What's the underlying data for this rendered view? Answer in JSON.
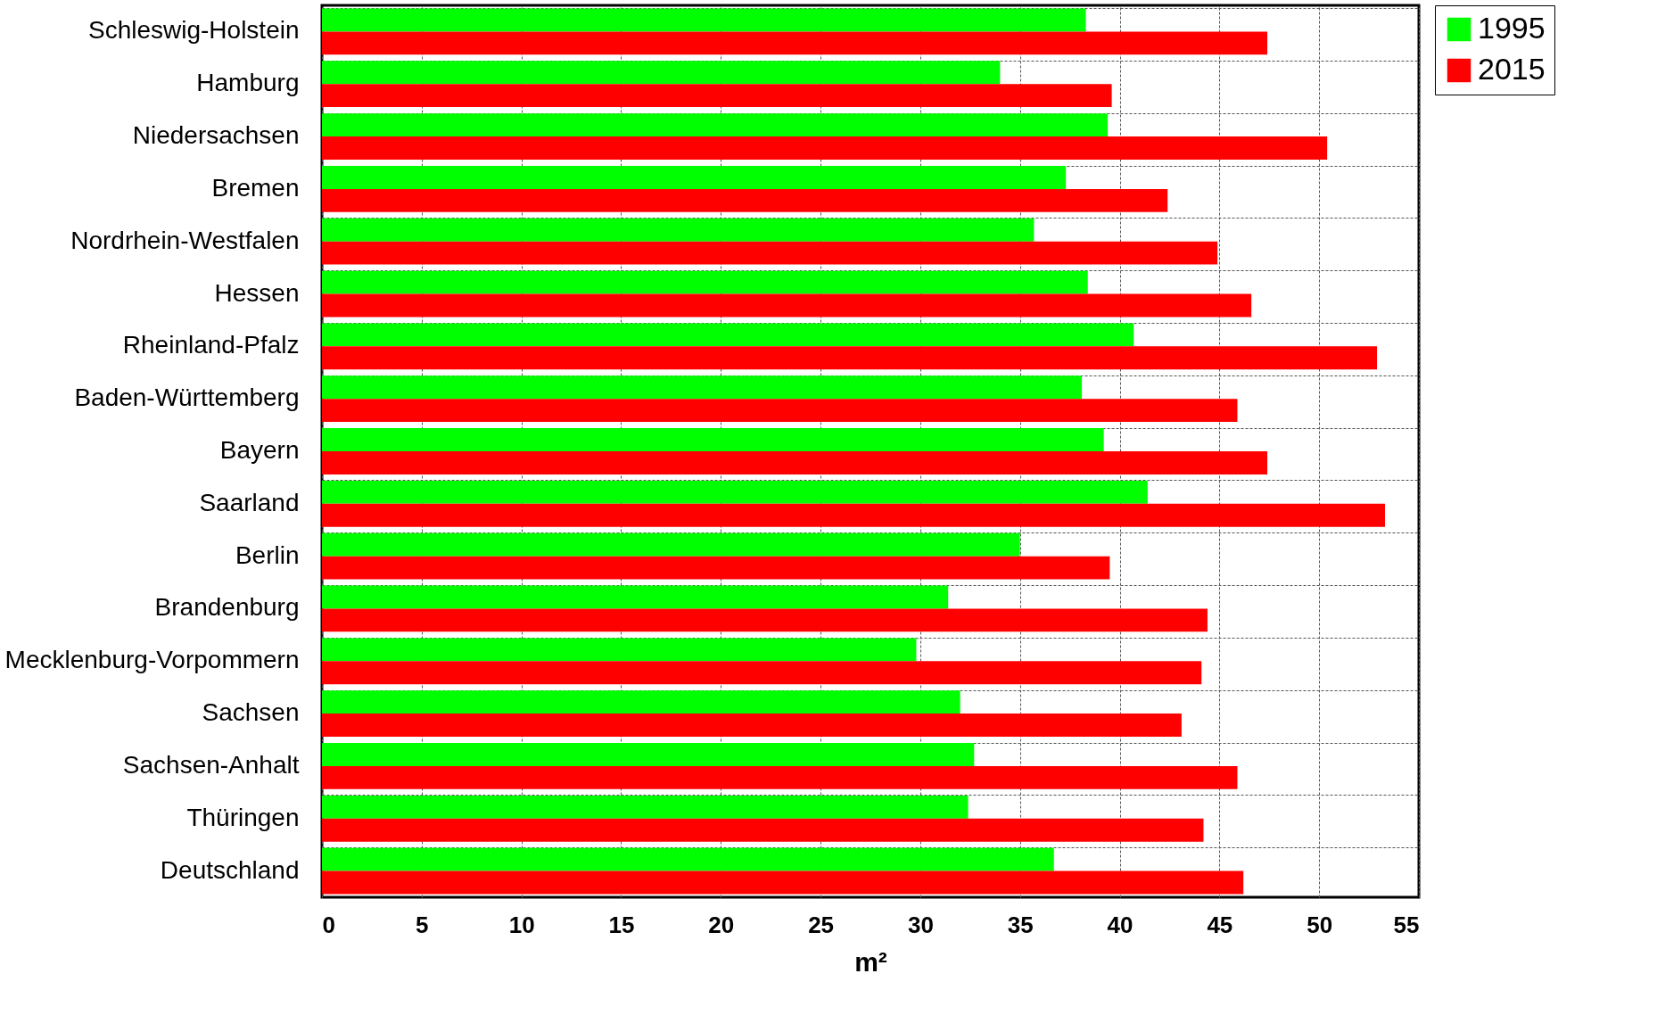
{
  "chart_data": {
    "type": "bar",
    "orientation": "horizontal",
    "xlabel": "m²",
    "categories": [
      "Schleswig-Holstein",
      "Hamburg",
      "Niedersachsen",
      "Bremen",
      "Nordrhein-Westfalen",
      "Hessen",
      "Rheinland-Pfalz",
      "Baden-Württemberg",
      "Bayern",
      "Saarland",
      "Berlin",
      "Brandenburg",
      "Mecklenburg-Vorpommern",
      "Sachsen",
      "Sachsen-Anhalt",
      "Thüringen",
      "Deutschland"
    ],
    "series": [
      {
        "name": "1995",
        "color": "#00ff00",
        "values": [
          38.3,
          34.0,
          39.4,
          37.3,
          35.7,
          38.4,
          40.7,
          38.1,
          39.2,
          41.4,
          35.0,
          31.4,
          29.8,
          32.0,
          32.7,
          32.4,
          36.7
        ]
      },
      {
        "name": "2015",
        "color": "#ff0000",
        "values": [
          47.4,
          39.6,
          50.4,
          42.4,
          44.9,
          46.6,
          52.9,
          45.9,
          47.4,
          53.3,
          39.5,
          44.4,
          44.1,
          43.1,
          45.9,
          44.2,
          46.2
        ]
      }
    ],
    "xlim": [
      0,
      55
    ],
    "xticks": [
      0,
      5,
      10,
      15,
      20,
      25,
      30,
      35,
      40,
      45,
      50,
      55
    ],
    "grid": true,
    "legend": "right"
  }
}
